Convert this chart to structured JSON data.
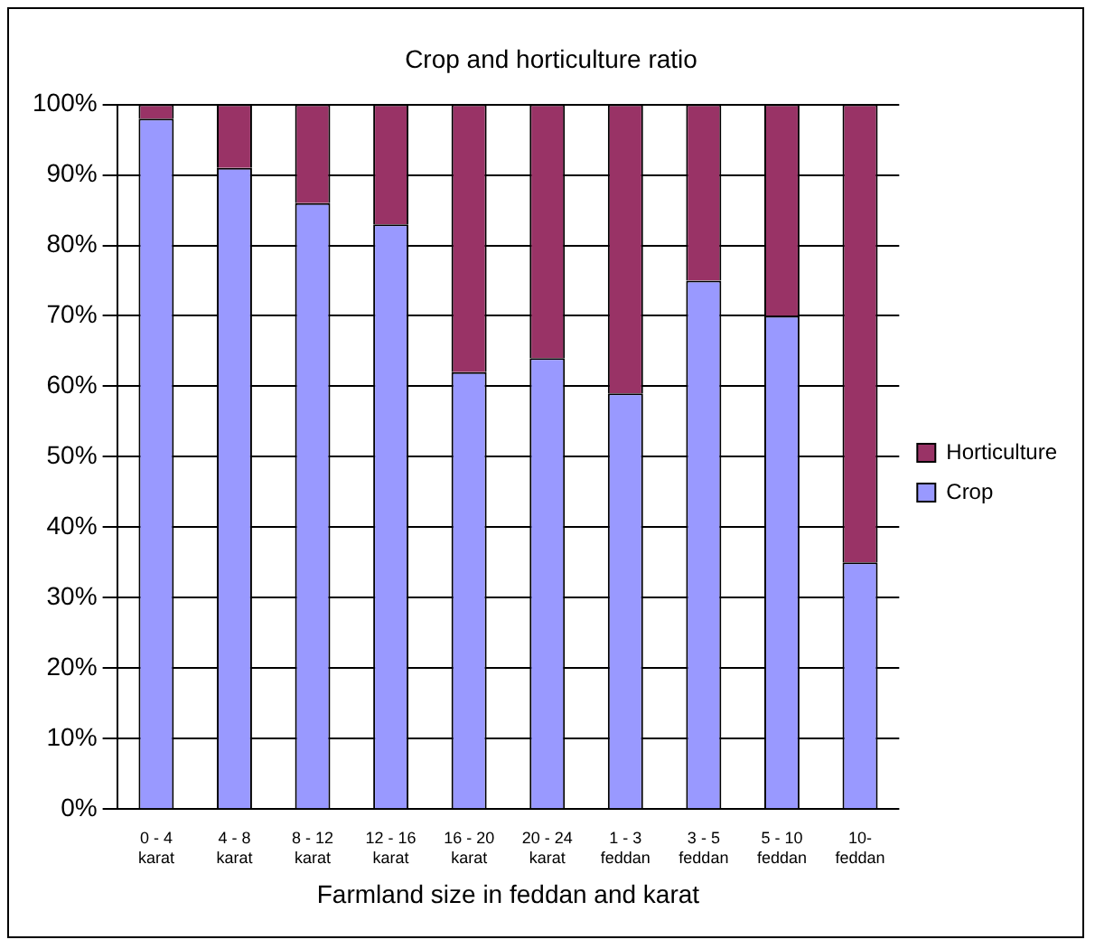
{
  "chart_data": {
    "type": "bar",
    "title": "Crop and horticulture ratio",
    "xlabel": "Farmland size in feddan and karat",
    "categories": [
      "0 - 4 karat",
      "4 - 8 karat",
      "8 - 12 karat",
      "12 - 16 karat",
      "16 - 20 karat",
      "20 - 24 karat",
      "1 - 3 feddan",
      "3 - 5 feddan",
      "5 - 10 feddan",
      "10- feddan"
    ],
    "series": [
      {
        "name": "Crop",
        "color": "#9999ff",
        "values": [
          98,
          91,
          86,
          83,
          62,
          64,
          59,
          75,
          70,
          35
        ]
      },
      {
        "name": "Horticulture",
        "color": "#993366",
        "values": [
          2,
          9,
          14,
          17,
          38,
          36,
          41,
          25,
          30,
          65
        ]
      }
    ],
    "stacked": true,
    "ylim": [
      0,
      100
    ],
    "yticks": [
      {
        "value": 0,
        "label": "0%"
      },
      {
        "value": 10,
        "label": "10%"
      },
      {
        "value": 20,
        "label": "20%"
      },
      {
        "value": 30,
        "label": "30%"
      },
      {
        "value": 40,
        "label": "40%"
      },
      {
        "value": 50,
        "label": "50%"
      },
      {
        "value": 60,
        "label": "60%"
      },
      {
        "value": 70,
        "label": "70%"
      },
      {
        "value": 80,
        "label": "80%"
      },
      {
        "value": 90,
        "label": "90%"
      },
      {
        "value": 100,
        "label": "100%"
      }
    ],
    "grid": "y",
    "legend": "right"
  }
}
